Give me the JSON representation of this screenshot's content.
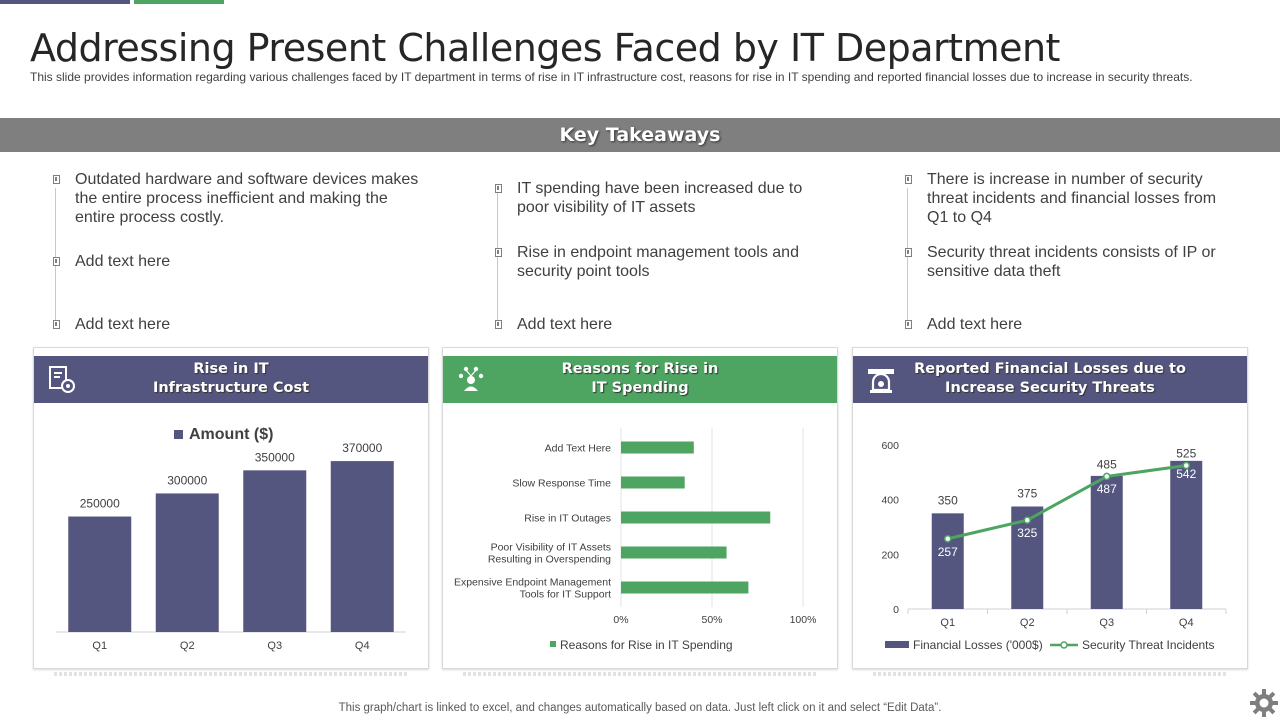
{
  "title": "Addressing Present Challenges Faced by IT Department",
  "subtitle": "This slide provides information regarding various challenges faced by IT department in terms of rise in IT infrastructure cost, reasons for rise in IT spending and reported financial losses due to increase in security threats.",
  "band_title": "Key Takeaways",
  "takeaways": [
    [
      "Outdated hardware and software devices makes the entire process inefficient and making the entire process costly.",
      "Add text here",
      "Add text here"
    ],
    [
      "IT spending have been increased due to poor visibility of IT assets",
      "Rise in endpoint management tools and security point tools",
      "Add text here"
    ],
    [
      "There is increase in number of security threat incidents and financial losses from Q1 to Q4",
      "Security threat incidents consists of IP or sensitive data theft",
      "Add text here"
    ]
  ],
  "panels": [
    {
      "title_l1": "Rise in IT",
      "title_l2": "Infrastructure Cost",
      "icon": "document-gear-icon",
      "color": "#55567f"
    },
    {
      "title_l1": "Reasons for Rise in",
      "title_l2": "IT Spending",
      "icon": "person-network-icon",
      "color": "#4ea561"
    },
    {
      "title_l1": "Reported Financial Losses due to",
      "title_l2": "Increase Security Threats",
      "icon": "alarm-icon",
      "color": "#55567f"
    }
  ],
  "colors": {
    "purple": "#55567f",
    "green": "#4ea561",
    "gray_band": "#7f7f7f"
  },
  "chart_data": [
    {
      "type": "bar",
      "categories": [
        "Q1",
        "Q2",
        "Q3",
        "Q4"
      ],
      "series": [
        {
          "name": "Amount ($)",
          "values": [
            250000,
            300000,
            350000,
            370000
          ]
        }
      ],
      "ylim": [
        0,
        420000
      ],
      "legend": "top",
      "grid": false,
      "data_labels": [
        "250000",
        "300000",
        "350000",
        "370000"
      ]
    },
    {
      "type": "bar",
      "orientation": "horizontal",
      "categories": [
        "Add Text Here",
        "Slow Response Time",
        "Rise in IT Outages",
        "Poor Visibility of IT Assets Resulting in Overspending",
        "Expensive Endpoint Management Tools for IT Support"
      ],
      "category_lines": [
        [
          "Add Text Here"
        ],
        [
          "Slow Response Time"
        ],
        [
          "Rise in IT Outages"
        ],
        [
          "Poor Visibility of IT Assets",
          "Resulting in Overspending"
        ],
        [
          "Expensive Endpoint Management",
          "Tools for IT Support"
        ]
      ],
      "series": [
        {
          "name": "Reasons for Rise in IT Spending",
          "values": [
            0.4,
            0.35,
            0.82,
            0.58,
            0.7
          ]
        }
      ],
      "xlim": [
        0,
        1
      ],
      "xticks": [
        "0%",
        "50%",
        "100%"
      ],
      "legend": "bottom",
      "grid": true
    },
    {
      "type": "bar+line",
      "categories": [
        "Q1",
        "Q2",
        "Q3",
        "Q4"
      ],
      "series": [
        {
          "name": "Financial Losses  ('000$)",
          "type": "bar",
          "values": [
            350,
            375,
            487,
            542
          ]
        },
        {
          "name": "Security Threat Incidents",
          "type": "line",
          "values": [
            257,
            325,
            485,
            525
          ]
        }
      ],
      "ylim": [
        0,
        600
      ],
      "yticks": [
        "0",
        "200",
        "400",
        "600"
      ],
      "legend": "bottom",
      "grid": false
    }
  ],
  "footer": "This graph/chart is linked to excel,  and changes automatically based on data. Just left click on it and select “Edit Data”."
}
